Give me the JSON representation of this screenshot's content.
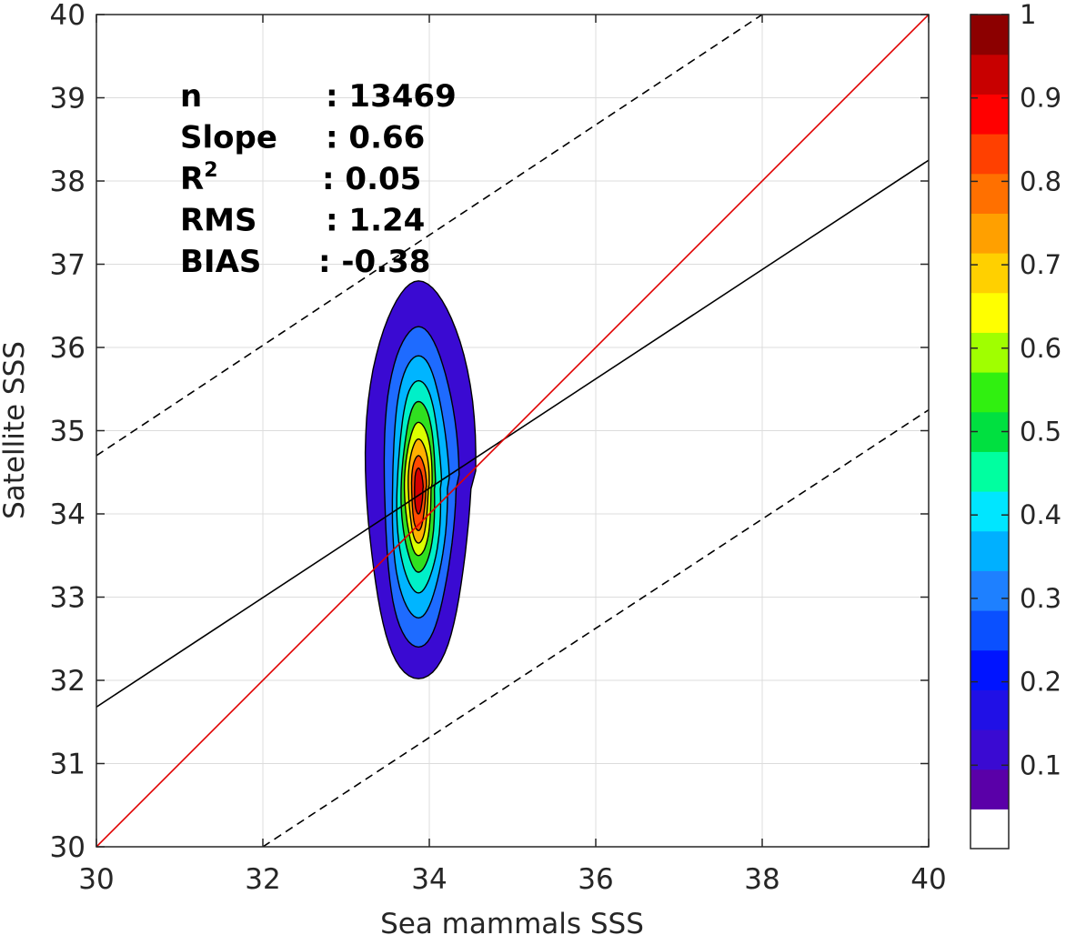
{
  "chart_data": {
    "type": "contour",
    "xlabel": "Sea mammals  SSS",
    "ylabel": "Satellite SSS",
    "xlim": [
      30,
      40
    ],
    "ylim": [
      30,
      40
    ],
    "xticks": [
      "30",
      "32",
      "34",
      "36",
      "38",
      "40"
    ],
    "yticks": [
      "30",
      "31",
      "32",
      "33",
      "34",
      "35",
      "36",
      "37",
      "38",
      "39",
      "40"
    ],
    "grid": true,
    "stats": [
      {
        "label": "n",
        "value": ": 13469"
      },
      {
        "label": "Slope",
        "value": ": 0.66"
      },
      {
        "label": "R",
        "sup": "2",
        "value": ": 0.05"
      },
      {
        "label": "RMS",
        "value": ": 1.24"
      },
      {
        "label": "BIAS",
        "value": ": -0.38"
      }
    ],
    "lines": {
      "identity": {
        "color": "#e00000",
        "points": [
          [
            30,
            30
          ],
          [
            40,
            40
          ]
        ]
      },
      "fit": {
        "color": "#000000",
        "points": [
          [
            30,
            31.68
          ],
          [
            40,
            38.25
          ]
        ]
      },
      "upper_bound": {
        "color": "#000000",
        "dash": true,
        "points": [
          [
            30,
            34.7
          ],
          [
            38,
            40
          ]
        ]
      },
      "lower_bound": {
        "color": "#000000",
        "dash": true,
        "points": [
          [
            32,
            30
          ],
          [
            40,
            35.25
          ]
        ]
      }
    },
    "density_center": [
      33.87,
      34.3
    ],
    "density_levels": [
      {
        "level": 0.1,
        "color": "#3a0ad2",
        "half_width": 0.63,
        "top": 36.8,
        "bottom": 32.02
      },
      {
        "level": 0.2,
        "color": "#1e6bff",
        "half_width": 0.43,
        "top": 36.25,
        "bottom": 32.4
      },
      {
        "level": 0.3,
        "color": "#00b5ff",
        "half_width": 0.33,
        "top": 35.9,
        "bottom": 32.75
      },
      {
        "level": 0.4,
        "color": "#00f0c8",
        "half_width": 0.26,
        "top": 35.6,
        "bottom": 33.05
      },
      {
        "level": 0.5,
        "color": "#30e020",
        "half_width": 0.2,
        "top": 35.35,
        "bottom": 33.3
      },
      {
        "level": 0.6,
        "color": "#dcff00",
        "half_width": 0.16,
        "top": 35.1,
        "bottom": 33.5
      },
      {
        "level": 0.7,
        "color": "#ffb000",
        "half_width": 0.12,
        "top": 34.9,
        "bottom": 33.65
      },
      {
        "level": 0.8,
        "color": "#ff4a00",
        "half_width": 0.085,
        "top": 34.7,
        "bottom": 33.8
      },
      {
        "level": 0.9,
        "color": "#d40000",
        "half_width": 0.05,
        "top": 34.55,
        "bottom": 34.0
      }
    ],
    "colorbar": {
      "range": [
        0,
        1
      ],
      "ticks": [
        "0.1",
        "0.2",
        "0.3",
        "0.4",
        "0.5",
        "0.6",
        "0.7",
        "0.8",
        "0.9",
        "1"
      ],
      "colors": [
        "#ffffff",
        "#5a00a8",
        "#3a0ad2",
        "#2010e6",
        "#0014ff",
        "#0a50ff",
        "#1e80ff",
        "#00b0ff",
        "#00e6ff",
        "#00ffa0",
        "#00e040",
        "#30f010",
        "#a0ff00",
        "#ffff00",
        "#ffd000",
        "#ffa000",
        "#ff7000",
        "#ff4000",
        "#ff0000",
        "#c80000",
        "#8c0000"
      ]
    }
  }
}
